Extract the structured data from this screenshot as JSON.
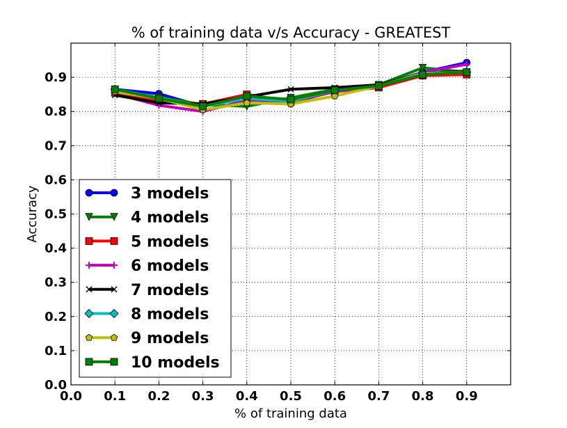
{
  "chart_data": {
    "type": "line",
    "title": "% of training data v/s Accuracy - GREATEST",
    "xlabel": "% of training data",
    "ylabel": "Accuracy",
    "xlim": [
      0.0,
      1.0
    ],
    "ylim": [
      0.0,
      1.0
    ],
    "xticks": [
      "0.0",
      "0.1",
      "0.2",
      "0.3",
      "0.4",
      "0.5",
      "0.6",
      "0.7",
      "0.8",
      "0.9"
    ],
    "yticks": [
      "0.0",
      "0.1",
      "0.2",
      "0.3",
      "0.4",
      "0.5",
      "0.6",
      "0.7",
      "0.8",
      "0.9"
    ],
    "grid": true,
    "legend_position": "lower-left",
    "x": [
      0.1,
      0.2,
      0.3,
      0.4,
      0.5,
      0.6,
      0.7,
      0.8,
      0.9
    ],
    "series": [
      {
        "name": "3 models",
        "color": "#0000ff",
        "marker": "circle",
        "values": [
          0.865,
          0.852,
          0.815,
          0.84,
          0.825,
          0.86,
          0.875,
          0.915,
          0.943
        ]
      },
      {
        "name": "4 models",
        "color": "#008000",
        "marker": "triangle-down",
        "values": [
          0.862,
          0.842,
          0.82,
          0.815,
          0.84,
          0.865,
          0.878,
          0.928,
          0.915
        ]
      },
      {
        "name": "5 models",
        "color": "#ff0000",
        "marker": "square",
        "values": [
          0.855,
          0.83,
          0.822,
          0.85,
          0.828,
          0.858,
          0.87,
          0.905,
          0.908
        ]
      },
      {
        "name": "6 models",
        "color": "#bf00bf",
        "marker": "plus",
        "values": [
          0.852,
          0.818,
          0.8,
          0.833,
          0.83,
          0.858,
          0.875,
          0.915,
          0.938
        ]
      },
      {
        "name": "7 models",
        "color": "#000000",
        "marker": "x",
        "values": [
          0.848,
          0.825,
          0.822,
          0.843,
          0.865,
          0.87,
          0.878,
          0.912,
          0.918
        ]
      },
      {
        "name": "8 models",
        "color": "#00bfbf",
        "marker": "diamond",
        "values": [
          0.865,
          0.84,
          0.815,
          0.838,
          0.83,
          0.862,
          0.875,
          0.912,
          0.915
        ]
      },
      {
        "name": "9 models",
        "color": "#bfbf00",
        "marker": "pentagon",
        "values": [
          0.858,
          0.838,
          0.805,
          0.825,
          0.822,
          0.845,
          0.875,
          0.91,
          0.915
        ]
      },
      {
        "name": "10 models",
        "color": "#007f00",
        "marker": "square",
        "values": [
          0.865,
          0.838,
          0.815,
          0.845,
          0.835,
          0.862,
          0.875,
          0.908,
          0.915
        ]
      }
    ]
  }
}
